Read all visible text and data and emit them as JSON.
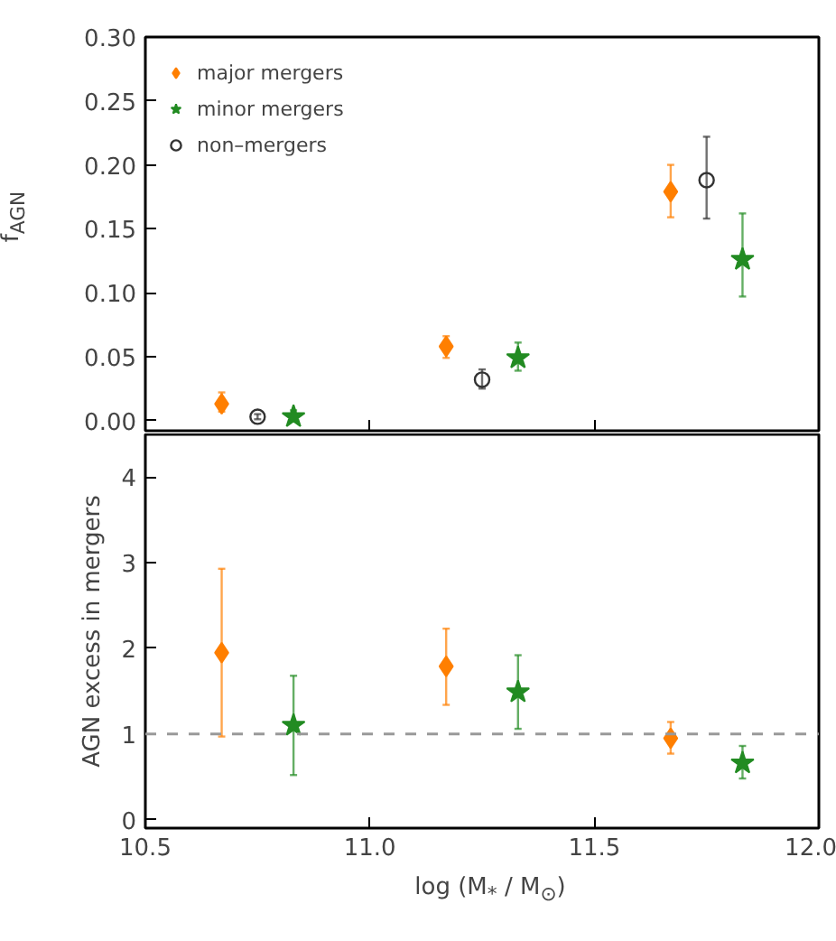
{
  "chart_data": [
    {
      "type": "scatter",
      "ylabel": "f$_{AGN}$",
      "xlim": [
        10.5,
        12.0
      ],
      "ylim": [
        -0.008,
        0.3
      ],
      "xticks": [
        10.5,
        11.0,
        11.5,
        12.0
      ],
      "yticks": [
        {
          "value": 0,
          "label": "0.00"
        },
        {
          "value": 0.05,
          "label": "0.05"
        },
        {
          "value": 0.1,
          "label": "0.10"
        },
        {
          "value": 0.15,
          "label": "0.15"
        },
        {
          "value": 0.2,
          "label": "0.20"
        },
        {
          "value": 0.25,
          "label": "0.25"
        },
        {
          "value": 0.3,
          "label": "0.30"
        }
      ],
      "tick_labels": "y",
      "legend": "top left",
      "grid": false,
      "series": [
        {
          "name": "major mergers",
          "color": "#ff7f00",
          "marker": "diamond",
          "x": [
            10.67,
            11.17,
            11.67
          ],
          "values": [
            0.013,
            0.058,
            0.179
          ],
          "errors": [
            [
              0.007,
              0.022
            ],
            [
              0.049,
              0.066
            ],
            [
              0.159,
              0.2
            ]
          ]
        },
        {
          "name": "minor mergers",
          "color": "#228b22",
          "marker": "star",
          "x": [
            10.83,
            11.33,
            11.83
          ],
          "values": [
            0.003,
            0.049,
            0.126
          ],
          "errors": [
            [
              0.0,
              0.008
            ],
            [
              0.039,
              0.061
            ],
            [
              0.097,
              0.162
            ]
          ]
        },
        {
          "name": "non–mergers",
          "color": "#333333",
          "marker": "circle",
          "x": [
            10.75,
            11.25,
            11.75
          ],
          "values": [
            0.003,
            0.032,
            0.188
          ],
          "errors": [
            [
              0.001,
              0.005
            ],
            [
              0.025,
              0.04
            ],
            [
              0.158,
              0.222
            ]
          ]
        }
      ]
    },
    {
      "type": "scatter",
      "ylabel": "AGN excess in mergers",
      "xlabel": "log (M$_{*}$ / M$_{⊙}$)",
      "xlim": [
        10.5,
        12.0
      ],
      "ylim": [
        -0.1,
        4.5
      ],
      "xticks": [
        {
          "value": 10.5,
          "label": "10.5"
        },
        {
          "value": 11.0,
          "label": "11.0"
        },
        {
          "value": 11.5,
          "label": "11.5"
        },
        {
          "value": 12.0,
          "label": "12.0"
        }
      ],
      "yticks": [
        0,
        1,
        2,
        3,
        4
      ],
      "grid": false,
      "legend": false,
      "ref_lines": [
        {
          "axis": "y",
          "value": 1,
          "color": "#999999",
          "line_style": "dashed"
        }
      ],
      "series": [
        {
          "color": "#ff7f00",
          "marker": "diamond",
          "x": [
            10.67,
            11.17,
            11.67
          ],
          "values": [
            1.95,
            1.79,
            0.95
          ],
          "errors": [
            [
              0.97,
              2.93
            ],
            [
              1.34,
              2.23
            ],
            [
              0.77,
              1.14
            ]
          ]
        },
        {
          "color": "#228b22",
          "marker": "star",
          "x": [
            10.83,
            11.33,
            11.83
          ],
          "values": [
            1.1,
            1.49,
            0.66
          ],
          "errors": [
            [
              0.52,
              1.68
            ],
            [
              1.06,
              1.92
            ],
            [
              0.48,
              0.86
            ]
          ]
        }
      ]
    }
  ]
}
